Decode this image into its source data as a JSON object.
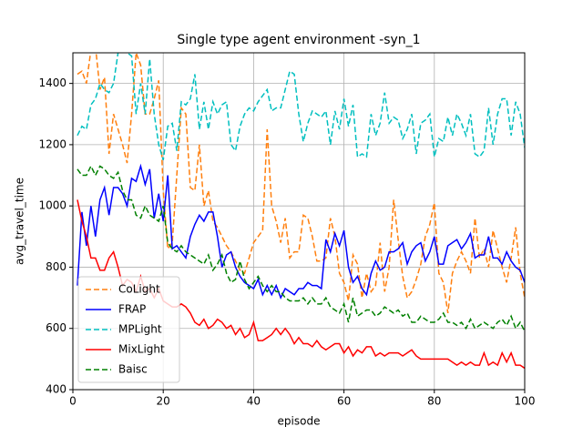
{
  "chart_data": {
    "type": "line",
    "title": "Single type agent environment -syn_1",
    "x_label": "episode",
    "y_label": "avg_travel_time",
    "xlim": [
      0,
      100
    ],
    "xticks": [
      0,
      20,
      40,
      60,
      80,
      100
    ],
    "ylim": [
      400,
      1500
    ],
    "yticks": [
      400,
      600,
      800,
      1000,
      1200,
      1400
    ],
    "grid": true,
    "legend": "lower left",
    "x": [
      1,
      2,
      3,
      4,
      5,
      6,
      7,
      8,
      9,
      10,
      11,
      12,
      13,
      14,
      15,
      16,
      17,
      18,
      19,
      20,
      21,
      22,
      23,
      24,
      25,
      26,
      27,
      28,
      29,
      30,
      31,
      32,
      33,
      34,
      35,
      36,
      37,
      38,
      39,
      40,
      41,
      42,
      43,
      44,
      45,
      46,
      47,
      48,
      49,
      50,
      51,
      52,
      53,
      54,
      55,
      56,
      57,
      58,
      59,
      60,
      61,
      62,
      63,
      64,
      65,
      66,
      67,
      68,
      69,
      70,
      71,
      72,
      73,
      74,
      75,
      76,
      77,
      78,
      79,
      80,
      81,
      82,
      83,
      84,
      85,
      86,
      87,
      88,
      89,
      90,
      91,
      92,
      93,
      94,
      95,
      96,
      97,
      98,
      99,
      100
    ],
    "series": [
      {
        "name": "CoLight",
        "color": "#ff7f0e",
        "linestyle": "dashed",
        "values": [
          1430,
          1440,
          1400,
          1510,
          1520,
          1380,
          1420,
          1170,
          1300,
          1250,
          1200,
          1140,
          1300,
          1500,
          1460,
          1300,
          1300,
          1350,
          1410,
          1050,
          860,
          880,
          1100,
          1320,
          1300,
          1060,
          1050,
          1200,
          1000,
          1050,
          950,
          930,
          900,
          870,
          850,
          820,
          790,
          780,
          830,
          880,
          900,
          920,
          1250,
          1000,
          950,
          880,
          960,
          830,
          850,
          850,
          970,
          960,
          900,
          820,
          820,
          830,
          960,
          900,
          780,
          750,
          690,
          840,
          810,
          700,
          780,
          720,
          740,
          880,
          720,
          800,
          1020,
          890,
          770,
          700,
          720,
          760,
          810,
          900,
          940,
          1010,
          780,
          750,
          650,
          780,
          820,
          850,
          820,
          780,
          960,
          830,
          860,
          800,
          920,
          860,
          800,
          750,
          830,
          930,
          780,
          700
        ]
      },
      {
        "name": "FRAP",
        "color": "#0000ff",
        "linestyle": "solid",
        "values": [
          740,
          980,
          870,
          1000,
          900,
          1020,
          1060,
          970,
          1060,
          1060,
          1040,
          1000,
          1090,
          1080,
          1130,
          1070,
          1120,
          960,
          1040,
          950,
          1100,
          860,
          870,
          850,
          830,
          900,
          940,
          970,
          950,
          980,
          980,
          900,
          800,
          840,
          850,
          800,
          770,
          750,
          740,
          730,
          760,
          710,
          740,
          710,
          740,
          700,
          730,
          720,
          710,
          730,
          730,
          750,
          740,
          740,
          730,
          890,
          850,
          910,
          870,
          920,
          800,
          750,
          770,
          730,
          710,
          780,
          820,
          790,
          800,
          850,
          850,
          860,
          880,
          810,
          850,
          870,
          880,
          820,
          850,
          900,
          810,
          810,
          870,
          880,
          890,
          860,
          880,
          910,
          830,
          840,
          840,
          900,
          830,
          830,
          810,
          850,
          820,
          800,
          790,
          750
        ]
      },
      {
        "name": "MPLight",
        "color": "#00bfbf",
        "linestyle": "dashed",
        "values": [
          1230,
          1260,
          1250,
          1330,
          1350,
          1400,
          1380,
          1370,
          1400,
          1500,
          1510,
          1500,
          1490,
          1300,
          1400,
          1300,
          1480,
          1300,
          1200,
          1150,
          1260,
          1270,
          1180,
          1340,
          1330,
          1350,
          1430,
          1250,
          1340,
          1250,
          1340,
          1300,
          1330,
          1340,
          1200,
          1180,
          1260,
          1300,
          1320,
          1310,
          1340,
          1360,
          1380,
          1310,
          1320,
          1320,
          1380,
          1440,
          1430,
          1300,
          1210,
          1270,
          1310,
          1300,
          1290,
          1310,
          1200,
          1310,
          1250,
          1350,
          1260,
          1330,
          1160,
          1170,
          1160,
          1300,
          1230,
          1270,
          1370,
          1270,
          1290,
          1280,
          1220,
          1250,
          1300,
          1170,
          1270,
          1280,
          1300,
          1160,
          1220,
          1210,
          1290,
          1230,
          1300,
          1270,
          1230,
          1300,
          1170,
          1160,
          1180,
          1320,
          1200,
          1300,
          1350,
          1350,
          1230,
          1340,
          1300,
          1190
        ]
      },
      {
        "name": "MixLight",
        "color": "#ff0000",
        "linestyle": "solid",
        "values": [
          1020,
          950,
          900,
          830,
          830,
          790,
          790,
          830,
          850,
          800,
          740,
          760,
          750,
          720,
          770,
          720,
          730,
          700,
          730,
          690,
          680,
          670,
          670,
          680,
          670,
          650,
          620,
          610,
          630,
          600,
          610,
          630,
          620,
          600,
          610,
          580,
          600,
          570,
          580,
          620,
          560,
          560,
          570,
          580,
          600,
          580,
          600,
          580,
          550,
          570,
          550,
          550,
          540,
          560,
          540,
          530,
          540,
          550,
          550,
          520,
          540,
          510,
          530,
          520,
          540,
          540,
          510,
          520,
          510,
          520,
          520,
          520,
          510,
          520,
          530,
          510,
          500,
          500,
          500,
          500,
          500,
          500,
          500,
          490,
          480,
          490,
          480,
          490,
          480,
          480,
          520,
          480,
          490,
          480,
          520,
          490,
          520,
          480,
          480,
          470
        ]
      },
      {
        "name": "Baisc",
        "color": "#008000",
        "linestyle": "dashed",
        "values": [
          1120,
          1100,
          1100,
          1130,
          1100,
          1130,
          1120,
          1100,
          1090,
          1110,
          1050,
          1020,
          1020,
          970,
          960,
          1000,
          970,
          960,
          950,
          1000,
          880,
          860,
          850,
          870,
          850,
          840,
          830,
          820,
          810,
          840,
          790,
          810,
          840,
          780,
          750,
          760,
          820,
          760,
          730,
          750,
          770,
          740,
          720,
          740,
          720,
          720,
          700,
          690,
          690,
          690,
          700,
          680,
          700,
          680,
          680,
          700,
          670,
          660,
          650,
          680,
          620,
          700,
          640,
          650,
          660,
          660,
          640,
          650,
          670,
          660,
          650,
          660,
          640,
          650,
          620,
          620,
          640,
          630,
          620,
          620,
          630,
          650,
          620,
          620,
          610,
          620,
          600,
          630,
          600,
          610,
          620,
          610,
          600,
          620,
          630,
          610,
          640,
          600,
          620,
          590
        ]
      }
    ]
  }
}
